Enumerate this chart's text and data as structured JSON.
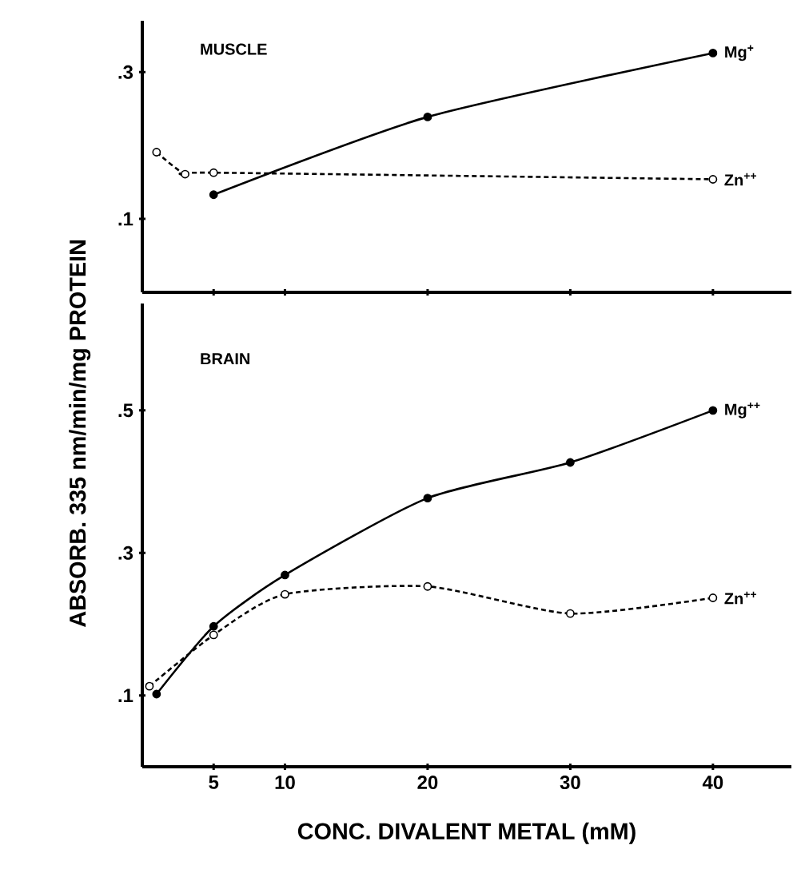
{
  "chart_data": [
    {
      "type": "line",
      "title": "MUSCLE",
      "xlim": [
        0,
        45.5
      ],
      "ylim": [
        0,
        0.37
      ],
      "xticks": [
        {
          "value": 5,
          "label": null
        },
        {
          "value": 10,
          "label": null
        },
        {
          "value": 20,
          "label": null
        },
        {
          "value": 30,
          "label": null
        },
        {
          "value": 40,
          "label": null
        }
      ],
      "yticks": [
        {
          "value": 0.1,
          "label": ".1"
        },
        {
          "value": 0.3,
          "label": ".3"
        }
      ],
      "tick_labels": "y",
      "legend": false,
      "marker": "circle",
      "series": [
        {
          "name": "Mg$^{+}$",
          "color": "#000000",
          "line_style": "solid",
          "x": [
            5,
            20,
            40
          ],
          "values": [
            0.133,
            0.239,
            0.326
          ]
        },
        {
          "name": "Zn$^{++}$",
          "color": "#000000",
          "line_style": "dashed",
          "x": [
            1,
            3,
            5,
            40
          ],
          "values": [
            0.191,
            0.161,
            0.163,
            0.154
          ]
        }
      ]
    },
    {
      "type": "line",
      "title": "BRAIN",
      "xlabel": "CONC. DIVALENT METAL (mM)",
      "ylabel": "ABSORB. 335 nm/min/mg PROTEIN",
      "xlim": [
        0,
        45.5
      ],
      "ylim": [
        0,
        0.65
      ],
      "xticks": [
        5,
        10,
        20,
        30,
        40
      ],
      "yticks": [
        {
          "value": 0.1,
          "label": ".1"
        },
        {
          "value": 0.3,
          "label": ".3"
        },
        {
          "value": 0.5,
          "label": ".5"
        }
      ],
      "legend": false,
      "marker": "circle",
      "series": [
        {
          "name": "Mg$^{++}$",
          "color": "#000000",
          "line_style": "solid",
          "x": [
            1,
            5,
            10,
            20,
            30,
            40
          ],
          "values": [
            0.102,
            0.197,
            0.269,
            0.377,
            0.427,
            0.5
          ]
        },
        {
          "name": "Zn$^{++}$",
          "color": "#000000",
          "line_style": "dashed",
          "x": [
            0.5,
            5,
            10,
            20,
            30,
            40
          ],
          "values": [
            0.113,
            0.185,
            0.242,
            0.253,
            0.215,
            0.237
          ]
        }
      ]
    }
  ]
}
